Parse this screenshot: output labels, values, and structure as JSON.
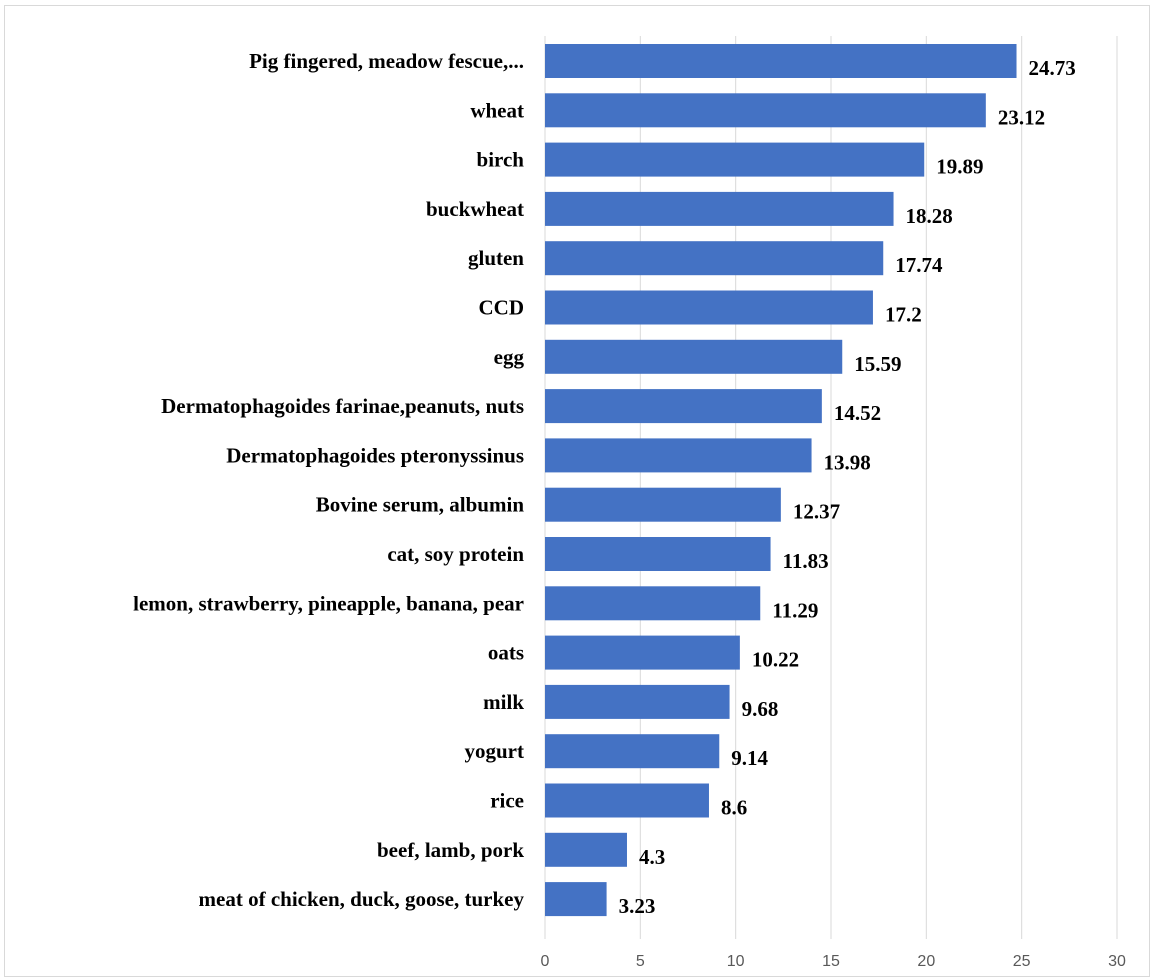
{
  "chart_data": {
    "type": "bar",
    "orientation": "horizontal",
    "title": "",
    "xlabel": "",
    "ylabel": "",
    "categories": [
      "Pig fingered, meadow fescue,...",
      "wheat",
      "birch",
      "buckwheat",
      "gluten",
      "CCD",
      "egg",
      "Dermatophagoides farinae,peanuts, nuts",
      "Dermatophagoides pteronyssinus",
      "Bovine serum, albumin",
      "cat, soy protein",
      "lemon, strawberry, pineapple, banana, pear",
      "oats",
      "milk",
      "yogurt",
      "rice",
      "beef, lamb, pork",
      "meat of chicken, duck, goose, turkey"
    ],
    "values": [
      24.73,
      23.12,
      19.89,
      18.28,
      17.74,
      17.2,
      15.59,
      14.52,
      13.98,
      12.37,
      11.83,
      11.29,
      10.22,
      9.68,
      9.14,
      8.6,
      4.3,
      3.23
    ],
    "value_labels": [
      "24.73",
      "23.12",
      "19.89",
      "18.28",
      "17.74",
      "17.2",
      "15.59",
      "14.52",
      "13.98",
      "12.37",
      "11.83",
      "11.29",
      "10.22",
      "9.68",
      "9.14",
      "8.6",
      "4.3",
      "3.23"
    ],
    "xlim": [
      0,
      30
    ],
    "xticks": [
      0,
      5,
      10,
      15,
      20,
      25,
      30
    ],
    "xtick_labels": [
      "0",
      "5",
      "10",
      "15",
      "20",
      "25",
      "30"
    ],
    "grid": "vertical",
    "legend": "none",
    "colors": {
      "bar": "#4472C4",
      "grid": "#d9d9d9",
      "tick_text": "#595959",
      "label_text": "#000000"
    }
  }
}
